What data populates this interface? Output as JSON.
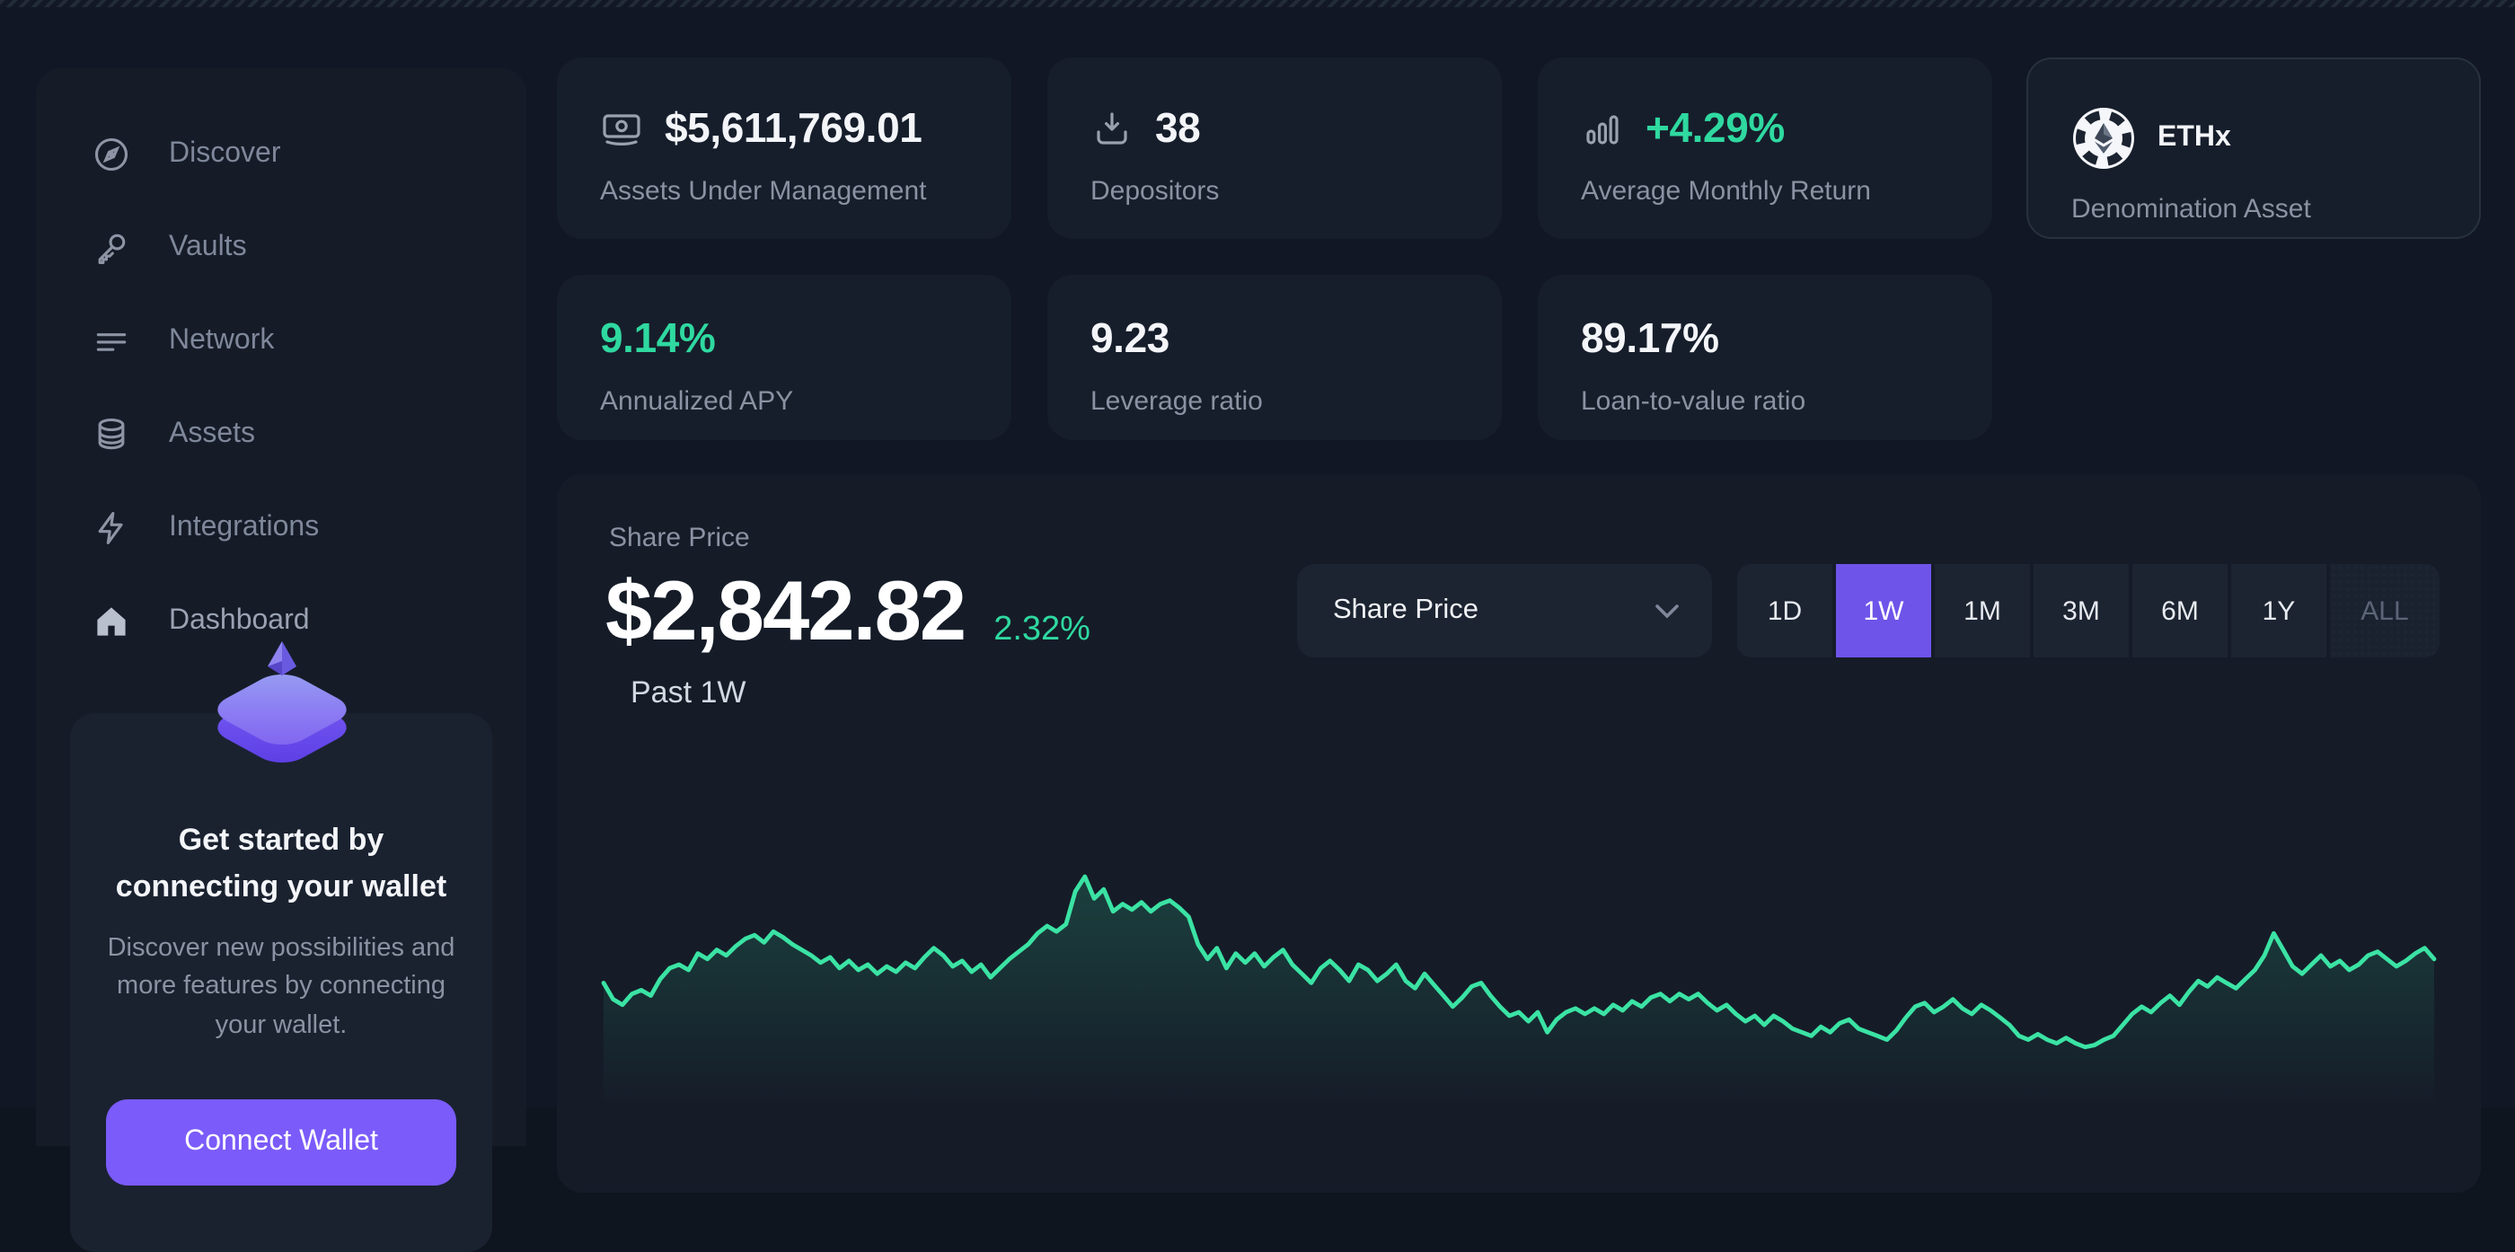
{
  "sidebar": {
    "items": [
      {
        "label": "Discover",
        "icon": "compass-icon"
      },
      {
        "label": "Vaults",
        "icon": "key-icon"
      },
      {
        "label": "Network",
        "icon": "lines-icon"
      },
      {
        "label": "Assets",
        "icon": "database-icon"
      },
      {
        "label": "Integrations",
        "icon": "lightning-icon"
      },
      {
        "label": "Dashboard",
        "icon": "home-icon",
        "active": true
      }
    ],
    "wallet_card": {
      "title_line1": "Get started by",
      "title_line2": "connecting your wallet",
      "body": "Discover new possibilities and more features by connecting your wallet.",
      "button_label": "Connect Wallet"
    }
  },
  "stats_row1": [
    {
      "icon": "banknote-icon",
      "value": "$5,611,769.01",
      "label": "Assets Under Management"
    },
    {
      "icon": "download-icon",
      "value": "38",
      "label": "Depositors"
    },
    {
      "icon": "bar-chart-icon",
      "value": "+4.29%",
      "label": "Average Monthly Return",
      "value_color": "green"
    },
    {
      "icon": "ethx-token-icon",
      "value": "ETHx",
      "label": "Denomination Asset"
    }
  ],
  "stats_row2": [
    {
      "value": "9.14%",
      "label": "Annualized APY",
      "value_color": "green"
    },
    {
      "value": "9.23",
      "label": "Leverage ratio"
    },
    {
      "value": "89.17%",
      "label": "Loan-to-value ratio"
    }
  ],
  "chart": {
    "section_label": "Share Price",
    "price": "$2,842.82",
    "change": "2.32%",
    "period_label": "Past 1W",
    "metric_dropdown": {
      "selected": "Share Price"
    },
    "ranges": [
      "1D",
      "1W",
      "1M",
      "3M",
      "6M",
      "1Y",
      "ALL"
    ],
    "active_range": "1W",
    "disabled_range": "ALL"
  },
  "colors": {
    "accent_purple": "#6e54e9",
    "button_purple": "#7b5bfa",
    "positive_green": "#2fd9a0",
    "line_green": "#3be3a4",
    "card_bg": "#161e2b",
    "page_bg": "#111724"
  },
  "chart_data": {
    "type": "line",
    "title": "Share Price",
    "xlabel": "time (past 1 week, axis not shown)",
    "ylabel": "share price USD (axis not shown)",
    "grid": false,
    "legend": false,
    "current_value_usd": 2842.82,
    "change_pct": 2.32,
    "approx_value_range_usd": [
      2780,
      2895
    ],
    "line_color": "#3be3a4",
    "fill": "green gradient fading down",
    "points_norm": [
      0.42,
      0.33,
      0.3,
      0.36,
      0.38,
      0.35,
      0.44,
      0.5,
      0.52,
      0.49,
      0.58,
      0.55,
      0.6,
      0.57,
      0.62,
      0.66,
      0.68,
      0.64,
      0.7,
      0.67,
      0.63,
      0.6,
      0.57,
      0.53,
      0.56,
      0.5,
      0.54,
      0.49,
      0.52,
      0.47,
      0.51,
      0.48,
      0.53,
      0.5,
      0.56,
      0.61,
      0.57,
      0.51,
      0.54,
      0.48,
      0.52,
      0.45,
      0.5,
      0.55,
      0.59,
      0.63,
      0.69,
      0.73,
      0.7,
      0.74,
      0.92,
      1.0,
      0.88,
      0.93,
      0.81,
      0.85,
      0.82,
      0.86,
      0.81,
      0.85,
      0.87,
      0.83,
      0.78,
      0.63,
      0.55,
      0.61,
      0.5,
      0.58,
      0.53,
      0.58,
      0.51,
      0.56,
      0.6,
      0.52,
      0.47,
      0.42,
      0.5,
      0.54,
      0.49,
      0.43,
      0.52,
      0.49,
      0.43,
      0.47,
      0.52,
      0.43,
      0.39,
      0.47,
      0.41,
      0.35,
      0.29,
      0.34,
      0.4,
      0.42,
      0.35,
      0.29,
      0.24,
      0.26,
      0.21,
      0.26,
      0.15,
      0.22,
      0.26,
      0.28,
      0.25,
      0.28,
      0.25,
      0.3,
      0.27,
      0.32,
      0.29,
      0.34,
      0.36,
      0.32,
      0.36,
      0.33,
      0.36,
      0.31,
      0.27,
      0.3,
      0.25,
      0.21,
      0.24,
      0.19,
      0.24,
      0.21,
      0.17,
      0.15,
      0.13,
      0.18,
      0.15,
      0.2,
      0.22,
      0.17,
      0.15,
      0.13,
      0.11,
      0.16,
      0.23,
      0.29,
      0.31,
      0.26,
      0.29,
      0.33,
      0.28,
      0.25,
      0.3,
      0.27,
      0.23,
      0.19,
      0.13,
      0.11,
      0.14,
      0.11,
      0.09,
      0.12,
      0.09,
      0.07,
      0.08,
      0.11,
      0.13,
      0.19,
      0.25,
      0.29,
      0.26,
      0.31,
      0.35,
      0.3,
      0.37,
      0.43,
      0.4,
      0.45,
      0.42,
      0.39,
      0.44,
      0.49,
      0.57,
      0.69,
      0.6,
      0.51,
      0.47,
      0.52,
      0.57,
      0.51,
      0.54,
      0.49,
      0.52,
      0.57,
      0.59,
      0.55,
      0.51,
      0.54,
      0.58,
      0.61,
      0.55
    ]
  }
}
